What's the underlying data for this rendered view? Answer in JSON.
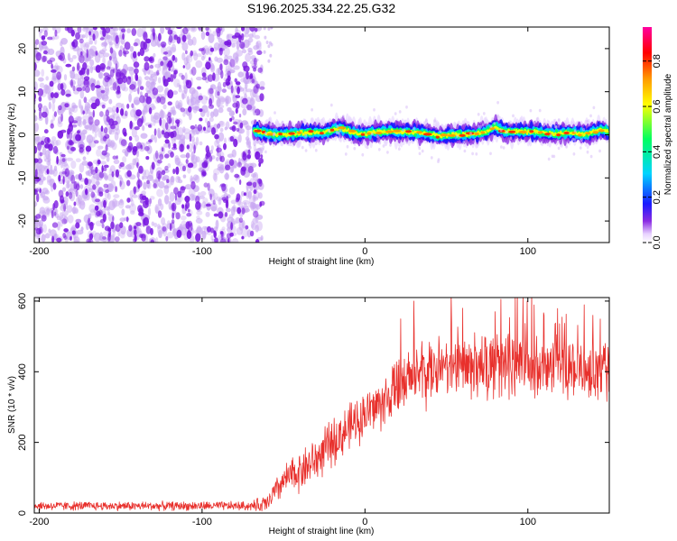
{
  "figure_title": "S196.2025.334.22.25.G32",
  "colors": {
    "speckle_dark": "#7a18e0",
    "speckle_light": "#c9a8f2",
    "snr_line": "#e8302c",
    "colormap": [
      "#ffffff",
      "#e8d2ff",
      "#8a2be2",
      "#1a1aff",
      "#00d4ff",
      "#00ff60",
      "#ffff00",
      "#ff9a00",
      "#ff0000",
      "#ff00a0"
    ]
  },
  "chart_data": [
    {
      "type": "heatmap",
      "xlabel": "Height of straight line (km)",
      "ylabel": "Frequency (Hz)",
      "xlim": [
        -203,
        150
      ],
      "ylim": [
        -25,
        25
      ],
      "xticks": [
        -200,
        -100,
        0,
        100
      ],
      "xtick_labels": [
        "-200",
        "-100",
        "0",
        "100"
      ],
      "yticks": [
        -20,
        -10,
        0,
        10,
        20
      ],
      "ytick_labels": [
        "-20",
        "-10",
        "0",
        "10",
        "20"
      ],
      "noise_region_x": [
        -203,
        -63
      ],
      "signal_band_x": [
        -68,
        150
      ],
      "signal_center_hz": [
        [
          -68,
          1.0
        ],
        [
          -55,
          0.0
        ],
        [
          -45,
          0.2
        ],
        [
          -35,
          0.5
        ],
        [
          -25,
          0.6
        ],
        [
          -15,
          1.5
        ],
        [
          -5,
          0.2
        ],
        [
          0,
          0.3
        ],
        [
          5,
          0.6
        ],
        [
          15,
          0.8
        ],
        [
          25,
          0.7
        ],
        [
          35,
          0.5
        ],
        [
          45,
          -0.3
        ],
        [
          55,
          0.0
        ],
        [
          65,
          0.2
        ],
        [
          75,
          0.8
        ],
        [
          80,
          2.0
        ],
        [
          85,
          0.8
        ],
        [
          95,
          0.7
        ],
        [
          105,
          0.8
        ],
        [
          115,
          0.1
        ],
        [
          125,
          0.6
        ],
        [
          135,
          0.0
        ],
        [
          145,
          1.2
        ],
        [
          150,
          0.6
        ]
      ],
      "colorbar": {
        "label": "Normalized spectral amplitude",
        "range": [
          0.0,
          0.95
        ],
        "ticks": [
          0.0,
          0.2,
          0.4,
          0.6,
          0.8
        ],
        "tick_labels": [
          "0.0",
          "0.2",
          "0.4",
          "0.6",
          "0.8"
        ]
      }
    },
    {
      "type": "line",
      "xlabel": "Height of straight line (km)",
      "ylabel": "SNR (10 * v/v)",
      "xlim": [
        -203,
        150
      ],
      "ylim": [
        0,
        610
      ],
      "xticks": [
        -200,
        -100,
        0,
        100
      ],
      "xtick_labels": [
        "-200",
        "-100",
        "0",
        "100"
      ],
      "yticks": [
        0,
        200,
        400,
        600
      ],
      "ytick_labels": [
        "0",
        "200",
        "400",
        "600"
      ],
      "series": [
        {
          "name": "SNR",
          "trend": [
            [
              -203,
              20
            ],
            [
              -70,
              20
            ],
            [
              -60,
              25
            ],
            [
              -55,
              60
            ],
            [
              -50,
              90
            ],
            [
              -40,
              120
            ],
            [
              -30,
              150
            ],
            [
              -20,
              200
            ],
            [
              -10,
              240
            ],
            [
              0,
              280
            ],
            [
              10,
              310
            ],
            [
              20,
              350
            ],
            [
              30,
              380
            ],
            [
              40,
              400
            ],
            [
              60,
              410
            ],
            [
              80,
              420
            ],
            [
              100,
              420
            ],
            [
              120,
              410
            ],
            [
              140,
              400
            ],
            [
              150,
              400
            ]
          ],
          "noise_amplitude": [
            [
              -203,
              15
            ],
            [
              -70,
              15
            ],
            [
              -60,
              35
            ],
            [
              -40,
              70
            ],
            [
              -20,
              80
            ],
            [
              0,
              80
            ],
            [
              20,
              100
            ],
            [
              40,
              110
            ],
            [
              80,
              110
            ],
            [
              150,
              100
            ]
          ],
          "peaks": [
            [
              30,
              600
            ],
            [
              60,
              580
            ],
            [
              80,
              570
            ],
            [
              97,
              610
            ],
            [
              110,
              560
            ],
            [
              140,
              560
            ]
          ]
        }
      ]
    }
  ]
}
